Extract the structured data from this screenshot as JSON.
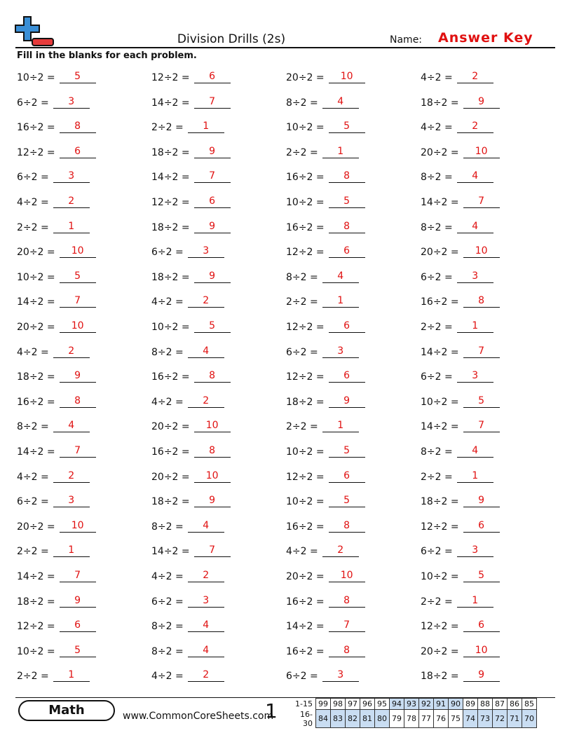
{
  "header": {
    "title": "Division Drills (2s)",
    "name_label": "Name:",
    "name_value": "Answer Key",
    "instruction": "Fill in the blanks for each problem."
  },
  "problems": [
    [
      [
        "10÷2 =",
        "5"
      ],
      [
        "12÷2 =",
        "6"
      ],
      [
        "20÷2 =",
        "10"
      ],
      [
        "4÷2 =",
        "2"
      ]
    ],
    [
      [
        "6÷2 =",
        "3"
      ],
      [
        "14÷2 =",
        "7"
      ],
      [
        "8÷2 =",
        "4"
      ],
      [
        "18÷2 =",
        "9"
      ]
    ],
    [
      [
        "16÷2 =",
        "8"
      ],
      [
        "2÷2 =",
        "1"
      ],
      [
        "10÷2 =",
        "5"
      ],
      [
        "4÷2 =",
        "2"
      ]
    ],
    [
      [
        "12÷2 =",
        "6"
      ],
      [
        "18÷2 =",
        "9"
      ],
      [
        "2÷2 =",
        "1"
      ],
      [
        "20÷2 =",
        "10"
      ]
    ],
    [
      [
        "6÷2 =",
        "3"
      ],
      [
        "14÷2 =",
        "7"
      ],
      [
        "16÷2 =",
        "8"
      ],
      [
        "8÷2 =",
        "4"
      ]
    ],
    [
      [
        "4÷2 =",
        "2"
      ],
      [
        "12÷2 =",
        "6"
      ],
      [
        "10÷2 =",
        "5"
      ],
      [
        "14÷2 =",
        "7"
      ]
    ],
    [
      [
        "2÷2 =",
        "1"
      ],
      [
        "18÷2 =",
        "9"
      ],
      [
        "16÷2 =",
        "8"
      ],
      [
        "8÷2 =",
        "4"
      ]
    ],
    [
      [
        "20÷2 =",
        "10"
      ],
      [
        "6÷2 =",
        "3"
      ],
      [
        "12÷2 =",
        "6"
      ],
      [
        "20÷2 =",
        "10"
      ]
    ],
    [
      [
        "10÷2 =",
        "5"
      ],
      [
        "18÷2 =",
        "9"
      ],
      [
        "8÷2 =",
        "4"
      ],
      [
        "6÷2 =",
        "3"
      ]
    ],
    [
      [
        "14÷2 =",
        "7"
      ],
      [
        "4÷2 =",
        "2"
      ],
      [
        "2÷2 =",
        "1"
      ],
      [
        "16÷2 =",
        "8"
      ]
    ],
    [
      [
        "20÷2 =",
        "10"
      ],
      [
        "10÷2 =",
        "5"
      ],
      [
        "12÷2 =",
        "6"
      ],
      [
        "2÷2 =",
        "1"
      ]
    ],
    [
      [
        "4÷2 =",
        "2"
      ],
      [
        "8÷2 =",
        "4"
      ],
      [
        "6÷2 =",
        "3"
      ],
      [
        "14÷2 =",
        "7"
      ]
    ],
    [
      [
        "18÷2 =",
        "9"
      ],
      [
        "16÷2 =",
        "8"
      ],
      [
        "12÷2 =",
        "6"
      ],
      [
        "6÷2 =",
        "3"
      ]
    ],
    [
      [
        "16÷2 =",
        "8"
      ],
      [
        "4÷2 =",
        "2"
      ],
      [
        "18÷2 =",
        "9"
      ],
      [
        "10÷2 =",
        "5"
      ]
    ],
    [
      [
        "8÷2 =",
        "4"
      ],
      [
        "20÷2 =",
        "10"
      ],
      [
        "2÷2 =",
        "1"
      ],
      [
        "14÷2 =",
        "7"
      ]
    ],
    [
      [
        "14÷2 =",
        "7"
      ],
      [
        "16÷2 =",
        "8"
      ],
      [
        "10÷2 =",
        "5"
      ],
      [
        "8÷2 =",
        "4"
      ]
    ],
    [
      [
        "4÷2 =",
        "2"
      ],
      [
        "20÷2 =",
        "10"
      ],
      [
        "12÷2 =",
        "6"
      ],
      [
        "2÷2 =",
        "1"
      ]
    ],
    [
      [
        "6÷2 =",
        "3"
      ],
      [
        "18÷2 =",
        "9"
      ],
      [
        "10÷2 =",
        "5"
      ],
      [
        "18÷2 =",
        "9"
      ]
    ],
    [
      [
        "20÷2 =",
        "10"
      ],
      [
        "8÷2 =",
        "4"
      ],
      [
        "16÷2 =",
        "8"
      ],
      [
        "12÷2 =",
        "6"
      ]
    ],
    [
      [
        "2÷2 =",
        "1"
      ],
      [
        "14÷2 =",
        "7"
      ],
      [
        "4÷2 =",
        "2"
      ],
      [
        "6÷2 =",
        "3"
      ]
    ],
    [
      [
        "14÷2 =",
        "7"
      ],
      [
        "4÷2 =",
        "2"
      ],
      [
        "20÷2 =",
        "10"
      ],
      [
        "10÷2 =",
        "5"
      ]
    ],
    [
      [
        "18÷2 =",
        "9"
      ],
      [
        "6÷2 =",
        "3"
      ],
      [
        "16÷2 =",
        "8"
      ],
      [
        "2÷2 =",
        "1"
      ]
    ],
    [
      [
        "12÷2 =",
        "6"
      ],
      [
        "8÷2 =",
        "4"
      ],
      [
        "14÷2 =",
        "7"
      ],
      [
        "12÷2 =",
        "6"
      ]
    ],
    [
      [
        "10÷2 =",
        "5"
      ],
      [
        "8÷2 =",
        "4"
      ],
      [
        "16÷2 =",
        "8"
      ],
      [
        "20÷2 =",
        "10"
      ]
    ],
    [
      [
        "2÷2 =",
        "1"
      ],
      [
        "4÷2 =",
        "2"
      ],
      [
        "6÷2 =",
        "3"
      ],
      [
        "18÷2 =",
        "9"
      ]
    ]
  ],
  "footer": {
    "subject": "Math",
    "website": "www.CommonCoreSheets.com",
    "page": "1",
    "score_rows": [
      {
        "label": "1-15",
        "cells": [
          "99",
          "98",
          "97",
          "96",
          "95",
          "94",
          "93",
          "92",
          "91",
          "90",
          "89",
          "88",
          "87",
          "86",
          "85"
        ]
      },
      {
        "label": "16-30",
        "cells": [
          "84",
          "83",
          "82",
          "81",
          "80",
          "79",
          "78",
          "77",
          "76",
          "75",
          "74",
          "73",
          "72",
          "71",
          "70"
        ]
      }
    ]
  }
}
